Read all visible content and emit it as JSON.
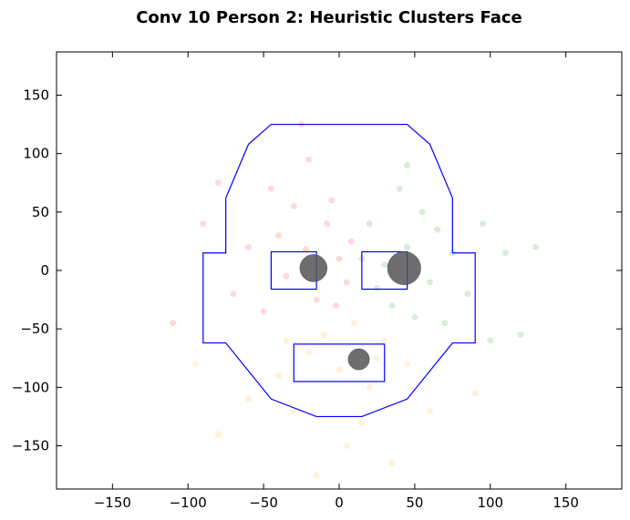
{
  "chart_data": {
    "type": "scatter",
    "title": "Conv 10 Person 2: Heuristic Clusters Face",
    "xlabel": "",
    "ylabel": "",
    "xlim": [
      -187,
      187
    ],
    "ylim": [
      -187,
      187
    ],
    "x_ticks": [
      -150,
      -100,
      -50,
      0,
      50,
      100,
      150
    ],
    "y_ticks": [
      150,
      100,
      50,
      0,
      -50,
      -100,
      -150
    ],
    "x_tick_labels": [
      "−150",
      "−100",
      "−50",
      "0",
      "50",
      "100",
      "150"
    ],
    "y_tick_labels": [
      "150",
      "100",
      "50",
      "0",
      "−50",
      "−100",
      "−150"
    ],
    "grid": false,
    "legend": "none",
    "colors": {
      "cluster_red": "#ff0000",
      "cluster_green": "#008000",
      "cluster_orange": "#ffa500",
      "outline": "#0000ff",
      "centroid": "#555555"
    },
    "series": [
      {
        "color": "red",
        "points": [
          [
            -22,
            18
          ],
          [
            -8,
            40
          ],
          [
            5,
            -10
          ],
          [
            -30,
            55
          ],
          [
            -15,
            -25
          ],
          [
            0,
            10
          ],
          [
            -45,
            70
          ],
          [
            -60,
            20
          ],
          [
            -20,
            95
          ],
          [
            -70,
            -20
          ],
          [
            -5,
            60
          ],
          [
            -35,
            -5
          ],
          [
            -90,
            40
          ],
          [
            8,
            25
          ],
          [
            -50,
            -35
          ],
          [
            -110,
            -45
          ],
          [
            -25,
            125
          ],
          [
            -80,
            75
          ],
          [
            -2,
            -30
          ],
          [
            -40,
            30
          ]
        ]
      },
      {
        "color": "green",
        "points": [
          [
            30,
            5
          ],
          [
            45,
            20
          ],
          [
            60,
            -10
          ],
          [
            35,
            -30
          ],
          [
            20,
            40
          ],
          [
            55,
            50
          ],
          [
            75,
            15
          ],
          [
            25,
            -15
          ],
          [
            40,
            70
          ],
          [
            85,
            -20
          ],
          [
            50,
            -40
          ],
          [
            65,
            35
          ],
          [
            15,
            10
          ],
          [
            95,
            40
          ],
          [
            110,
            15
          ],
          [
            70,
            -45
          ],
          [
            100,
            -60
          ],
          [
            130,
            20
          ],
          [
            45,
            90
          ],
          [
            120,
            -55
          ]
        ]
      },
      {
        "color": "orange",
        "points": [
          [
            10,
            -45
          ],
          [
            -20,
            -70
          ],
          [
            30,
            -60
          ],
          [
            -40,
            -90
          ],
          [
            0,
            -85
          ],
          [
            20,
            -100
          ],
          [
            -30,
            -120
          ],
          [
            15,
            -130
          ],
          [
            -60,
            -110
          ],
          [
            45,
            -80
          ],
          [
            -10,
            -55
          ],
          [
            5,
            -150
          ],
          [
            -80,
            -140
          ],
          [
            60,
            -120
          ],
          [
            -35,
            -60
          ],
          [
            35,
            -165
          ],
          [
            -15,
            -175
          ],
          [
            90,
            -105
          ],
          [
            -95,
            -80
          ],
          [
            25,
            -75
          ]
        ]
      }
    ],
    "face_outline": {
      "head": [
        [
          -45,
          125
        ],
        [
          45,
          125
        ],
        [
          60,
          108
        ],
        [
          75,
          62
        ],
        [
          75,
          15
        ],
        [
          90,
          15
        ],
        [
          90,
          -62
        ],
        [
          75,
          -62
        ],
        [
          45,
          -110
        ],
        [
          15,
          -125
        ],
        [
          -15,
          -125
        ],
        [
          -45,
          -110
        ],
        [
          -75,
          -62
        ],
        [
          -90,
          -62
        ],
        [
          -90,
          15
        ],
        [
          -75,
          15
        ],
        [
          -75,
          62
        ],
        [
          -60,
          108
        ]
      ],
      "left_eye": {
        "x0": -45,
        "y0": -16,
        "x1": -15,
        "y1": 16
      },
      "right_eye": {
        "x0": 15,
        "y0": -16,
        "x1": 45,
        "y1": 16
      },
      "mouth": {
        "x0": -30,
        "y0": -95,
        "x1": 30,
        "y1": -63
      }
    },
    "centroids": [
      {
        "x": -17,
        "y": 2,
        "r": 9
      },
      {
        "x": 43,
        "y": 2,
        "r": 11
      },
      {
        "x": 13,
        "y": -76,
        "r": 7
      }
    ]
  }
}
